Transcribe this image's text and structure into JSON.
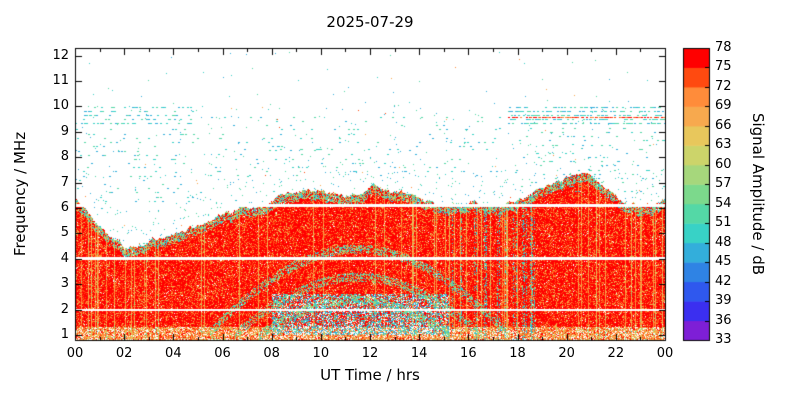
{
  "title": "2025-07-29",
  "x_axis": {
    "label": "UT Time / hrs",
    "ticks": [
      "00",
      "02",
      "04",
      "06",
      "08",
      "10",
      "12",
      "14",
      "16",
      "18",
      "20",
      "22",
      "00"
    ]
  },
  "y_axis": {
    "label": "Frequency / MHz",
    "ticks": [
      "1",
      "2",
      "3",
      "4",
      "5",
      "6",
      "7",
      "8",
      "9",
      "10",
      "11",
      "12"
    ]
  },
  "colorbar": {
    "label": "Signal Amplitude / dB",
    "tick_labels": [
      "78",
      "75",
      "72",
      "69",
      "66",
      "63",
      "60",
      "57",
      "54",
      "51",
      "48",
      "45",
      "42",
      "39",
      "36",
      "33"
    ],
    "value_min": 33,
    "value_max": 78,
    "colors": [
      "#7e1fd6",
      "#3b2ff0",
      "#2f58ee",
      "#2f83e4",
      "#33aedb",
      "#38d2c6",
      "#54d8a6",
      "#7cd98c",
      "#a6d77c",
      "#ccd46a",
      "#e8c75c",
      "#f7a94e",
      "#ff8c3a",
      "#ff4a10",
      "#ff0000"
    ]
  },
  "chart_data": {
    "type": "heatmap",
    "title": "2025-07-29",
    "xlabel": "UT Time / hrs",
    "ylabel": "Frequency / MHz",
    "zlabel": "Signal Amplitude / dB",
    "x_range_hours": [
      0,
      24
    ],
    "y_range_mhz": [
      0.8,
      12.3
    ],
    "amplitude_scale_db": {
      "min": 33,
      "max": 78,
      "step": 3
    },
    "envelope": {
      "hours": [
        0,
        1,
        2,
        3,
        4,
        5,
        6,
        7,
        8,
        9,
        10,
        11,
        12,
        13,
        14,
        15,
        16,
        17,
        18,
        19,
        20,
        21,
        22,
        23,
        24
      ],
      "mhz": [
        6.3,
        5.3,
        4.5,
        4.8,
        5.1,
        5.5,
        5.9,
        6.15,
        6.3,
        6.65,
        6.85,
        6.45,
        6.95,
        6.5,
        6.25,
        6.05,
        6.2,
        6.1,
        6.25,
        6.6,
        7.05,
        7.2,
        6.5,
        6.1,
        6.45
      ]
    },
    "white_bands": [
      {
        "mhz": 6.1,
        "thickness_px": 3
      },
      {
        "mhz": 4.0,
        "thickness_px": 3
      },
      {
        "mhz": 1.98,
        "thickness_px": 2
      }
    ],
    "low_band_haze": {
      "hours": [
        8,
        15.2
      ],
      "mhz": [
        1.0,
        2.6
      ]
    },
    "echo_arcs": [
      {
        "hours": [
          5.5,
          17.5
        ],
        "base_mhz": 1.1,
        "peak_mhz": 4.4,
        "thickness_mhz": 0.28,
        "density": 0.45
      },
      {
        "hours": [
          6.5,
          16.5
        ],
        "base_mhz": 1.0,
        "peak_mhz": 3.3,
        "thickness_mhz": 0.3,
        "density": 0.4
      },
      {
        "hours": [
          7.5,
          15.2
        ],
        "base_mhz": 1.0,
        "peak_mhz": 2.4,
        "thickness_mhz": 0.35,
        "density": 0.5
      }
    ],
    "interference_bands": [
      {
        "hours": [
          0,
          4.8
        ],
        "mhz": [
          9.25,
          10.05
        ],
        "density": 0.18,
        "palette": "cyan"
      },
      {
        "hours": [
          0,
          4.8
        ],
        "mhz": [
          8.85,
          9.1
        ],
        "density": 0.05,
        "palette": "cyan"
      },
      {
        "hours": [
          17.6,
          24
        ],
        "mhz": [
          9.25,
          10.05
        ],
        "density": 0.3,
        "palette": "cyan"
      },
      {
        "hours": [
          17.6,
          24
        ],
        "mhz": [
          9.5,
          9.68
        ],
        "density": 0.55,
        "palette": "orange"
      },
      {
        "hours": [
          18,
          24
        ],
        "mhz": [
          6.6,
          9.2
        ],
        "density": 0.05,
        "palette": "cyan"
      },
      {
        "hours": [
          5.5,
          17.5
        ],
        "mhz": [
          7.2,
          9.6
        ],
        "density": 0.03,
        "palette": "cyan"
      },
      {
        "hours": [
          6,
          17
        ],
        "mhz": [
          8.25,
          8.42
        ],
        "density": 0.06,
        "palette": "cyan"
      },
      {
        "hours": [
          0,
          5
        ],
        "mhz": [
          6.2,
          9.0
        ],
        "density": 0.035,
        "palette": "cyan"
      }
    ]
  }
}
